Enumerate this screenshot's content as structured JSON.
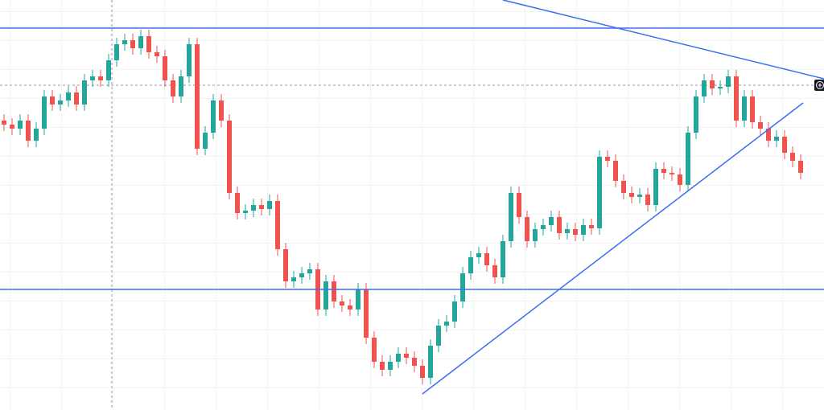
{
  "chart_data": {
    "type": "candlestick",
    "xlim": [
      -0.5,
      101.9
    ],
    "ylim": [
      0,
      510
    ],
    "up_color": "#26a69a",
    "down_color": "#ef5350",
    "line_color": "#3b6ef0",
    "x": [
      0,
      1,
      2,
      3,
      4,
      5,
      6,
      7,
      8,
      9,
      10,
      11,
      12,
      13,
      14,
      15,
      16,
      17,
      18,
      19,
      20,
      21,
      22,
      23,
      24,
      25,
      26,
      27,
      28,
      29,
      30,
      31,
      32,
      33,
      34,
      35,
      36,
      37,
      38,
      39,
      40,
      41,
      42,
      43,
      44,
      45,
      46,
      47,
      48,
      49,
      50,
      51,
      52,
      53,
      54,
      55,
      56,
      57,
      58,
      59,
      60,
      61,
      62,
      63,
      64,
      65,
      66,
      67,
      68,
      69,
      70,
      71,
      72,
      73,
      74,
      75,
      76,
      77,
      78,
      79,
      80,
      81,
      82,
      83,
      84,
      85,
      86,
      87,
      88,
      89,
      90,
      91,
      92,
      93,
      94,
      95,
      96,
      97,
      98,
      99
    ],
    "open": [
      360,
      355,
      350,
      360,
      335,
      350,
      390,
      380,
      385,
      395,
      380,
      410,
      415,
      410,
      435,
      455,
      460,
      450,
      465,
      445,
      440,
      410,
      390,
      415,
      455,
      325,
      345,
      385,
      360,
      270,
      245,
      248,
      255,
      250,
      260,
      200,
      160,
      165,
      170,
      175,
      125,
      160,
      135,
      130,
      125,
      150,
      90,
      60,
      50,
      60,
      70,
      65,
      55,
      40,
      80,
      105,
      110,
      135,
      170,
      190,
      195,
      180,
      165,
      210,
      270,
      240,
      210,
      225,
      230,
      240,
      220,
      225,
      218,
      230,
      226,
      315,
      310,
      285,
      270,
      265,
      268,
      255,
      300,
      295,
      293,
      280,
      345,
      390,
      410,
      400,
      402,
      415,
      360,
      390,
      358,
      350,
      335,
      340,
      320,
      310
    ],
    "high": [
      368,
      363,
      368,
      368,
      358,
      398,
      398,
      393,
      403,
      403,
      418,
      423,
      423,
      443,
      463,
      468,
      468,
      473,
      473,
      453,
      448,
      418,
      423,
      463,
      463,
      353,
      393,
      393,
      368,
      278,
      256,
      263,
      263,
      268,
      268,
      208,
      173,
      178,
      183,
      183,
      168,
      168,
      143,
      138,
      158,
      158,
      98,
      68,
      68,
      78,
      78,
      73,
      63,
      88,
      113,
      118,
      143,
      178,
      198,
      203,
      203,
      188,
      218,
      278,
      278,
      248,
      233,
      238,
      248,
      248,
      233,
      233,
      238,
      238,
      323,
      323,
      318,
      293,
      278,
      276,
      276,
      308,
      308,
      303,
      301,
      353,
      398,
      418,
      418,
      410,
      423,
      423,
      398,
      398,
      366,
      358,
      348,
      348,
      328,
      318
    ],
    "low": [
      347,
      342,
      342,
      327,
      327,
      342,
      372,
      372,
      377,
      372,
      372,
      402,
      402,
      402,
      427,
      447,
      442,
      442,
      437,
      432,
      402,
      382,
      382,
      407,
      317,
      317,
      337,
      352,
      262,
      237,
      237,
      240,
      242,
      242,
      192,
      152,
      152,
      157,
      162,
      117,
      117,
      127,
      122,
      117,
      117,
      82,
      52,
      42,
      42,
      52,
      57,
      47,
      32,
      32,
      72,
      97,
      102,
      127,
      162,
      182,
      172,
      157,
      157,
      202,
      232,
      202,
      202,
      217,
      222,
      212,
      212,
      210,
      210,
      218,
      218,
      302,
      277,
      262,
      257,
      257,
      247,
      247,
      287,
      285,
      272,
      272,
      337,
      382,
      392,
      392,
      394,
      352,
      352,
      350,
      342,
      327,
      327,
      312,
      302,
      287
    ],
    "close": [
      355,
      350,
      360,
      335,
      350,
      390,
      380,
      385,
      395,
      380,
      410,
      415,
      410,
      435,
      455,
      460,
      450,
      465,
      445,
      440,
      410,
      390,
      415,
      455,
      325,
      345,
      385,
      360,
      270,
      245,
      248,
      255,
      250,
      260,
      200,
      160,
      165,
      170,
      175,
      125,
      160,
      135,
      130,
      125,
      150,
      90,
      60,
      50,
      60,
      70,
      65,
      55,
      40,
      80,
      105,
      110,
      135,
      170,
      190,
      195,
      180,
      165,
      210,
      270,
      240,
      210,
      225,
      230,
      240,
      220,
      225,
      218,
      230,
      226,
      315,
      310,
      285,
      270,
      265,
      268,
      255,
      300,
      295,
      293,
      280,
      345,
      390,
      410,
      400,
      402,
      415,
      360,
      390,
      358,
      350,
      335,
      340,
      320,
      310,
      295
    ],
    "hlines": [
      475,
      150
    ],
    "trendlines": [
      {
        "x": [
          62,
          101.9
        ],
        "y": [
          510,
          412
        ]
      },
      {
        "x": [
          52,
          99.3
        ],
        "y": [
          20,
          382
        ]
      }
    ],
    "crosshair": {
      "x": 13.4,
      "y": 404
    }
  }
}
